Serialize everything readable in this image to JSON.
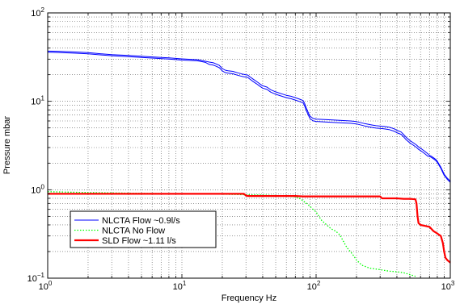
{
  "chart_data": {
    "type": "line",
    "xlabel": "Frequency Hz",
    "ylabel": "Pressure mbar",
    "x_scale": "log",
    "y_scale": "log",
    "xlim": [
      1,
      1000
    ],
    "ylim": [
      0.1,
      100
    ],
    "grid": true,
    "legend_position": "lower-left",
    "x_ticks": [
      {
        "value": 1,
        "base": "10",
        "exp": "0"
      },
      {
        "value": 10,
        "base": "10",
        "exp": "1"
      },
      {
        "value": 100,
        "base": "10",
        "exp": "2"
      },
      {
        "value": 1000,
        "base": "10",
        "exp": "3"
      }
    ],
    "y_ticks": [
      {
        "value": 0.1,
        "base": "10",
        "exp": "−1"
      },
      {
        "value": 1,
        "base": "10",
        "exp": "0"
      },
      {
        "value": 10,
        "base": "10",
        "exp": "1"
      },
      {
        "value": 100,
        "base": "10",
        "exp": "2"
      }
    ],
    "series": [
      {
        "name": "NLCTA Flow ~0.9l/s",
        "color": "#0000ff",
        "style": "solid",
        "x": [
          1,
          1.2,
          1.5,
          2,
          2.5,
          3,
          4,
          5,
          6,
          8,
          10,
          12,
          13,
          14,
          15,
          16,
          17,
          17.5,
          18,
          19,
          20,
          21,
          22,
          24,
          26,
          28,
          30,
          31,
          32,
          34,
          36,
          38,
          40,
          43,
          46,
          50,
          55,
          60,
          65,
          70,
          75,
          80,
          82,
          85,
          88,
          90,
          95,
          100,
          120,
          150,
          180,
          200,
          230,
          260,
          280,
          300,
          320,
          350,
          380,
          400,
          430,
          450,
          470,
          500,
          530,
          560,
          580,
          600,
          620,
          650,
          680,
          700,
          720,
          750,
          780,
          800,
          850,
          900,
          950,
          1000
        ],
        "y": [
          37,
          36.8,
          36.3,
          35.5,
          34.5,
          33.8,
          33,
          32.3,
          31.8,
          31,
          30.2,
          29.8,
          29.6,
          29,
          28.4,
          27.8,
          27.4,
          27,
          26.5,
          25.5,
          23.5,
          22.5,
          22.2,
          21.8,
          21,
          20.4,
          20,
          19.8,
          19,
          17.8,
          16.8,
          15.8,
          15,
          14.5,
          13.5,
          12.8,
          12.2,
          11.7,
          11.4,
          11,
          10.6,
          10.2,
          9.5,
          8.2,
          7.3,
          6.8,
          6.4,
          6.3,
          6.2,
          6.1,
          6,
          5.9,
          5.6,
          5.4,
          5.3,
          5.25,
          5.2,
          5.1,
          4.9,
          4.7,
          4.5,
          4.2,
          3.9,
          3.6,
          3.4,
          3.2,
          3.05,
          2.95,
          2.85,
          2.7,
          2.55,
          2.45,
          2.4,
          2.3,
          2.2,
          2.1,
          1.8,
          1.5,
          1.35,
          1.25
        ]
      },
      {
        "name": "NLCTA No Flow",
        "color": "#00ff00",
        "style": "dotted",
        "x": [
          1,
          2,
          5,
          10,
          20,
          40,
          60,
          70,
          75,
          80,
          85,
          90,
          95,
          100,
          105,
          110,
          120,
          130,
          140,
          150,
          160,
          170,
          180,
          190,
          200,
          220,
          250,
          300,
          350,
          400,
          450,
          500,
          550
        ],
        "y": [
          0.95,
          0.93,
          0.91,
          0.9,
          0.89,
          0.87,
          0.85,
          0.83,
          0.8,
          0.75,
          0.7,
          0.65,
          0.6,
          0.56,
          0.5,
          0.45,
          0.4,
          0.36,
          0.34,
          0.31,
          0.26,
          0.22,
          0.2,
          0.18,
          0.16,
          0.14,
          0.13,
          0.125,
          0.12,
          0.118,
          0.115,
          0.11,
          0.105
        ]
      },
      {
        "name": "SLD Flow ~1.11 l/s",
        "color": "#ff0000",
        "style": "solid-thick",
        "x": [
          1,
          5,
          10,
          20,
          29,
          30,
          31,
          35,
          40,
          50,
          60,
          70,
          80,
          90,
          100,
          150,
          200,
          250,
          300,
          310,
          350,
          400,
          450,
          500,
          550,
          560,
          570,
          580,
          600,
          650,
          700,
          750,
          800,
          850,
          880,
          900,
          920,
          950,
          1000
        ],
        "y": [
          0.9,
          0.9,
          0.9,
          0.9,
          0.9,
          0.86,
          0.85,
          0.85,
          0.85,
          0.85,
          0.85,
          0.85,
          0.84,
          0.84,
          0.84,
          0.84,
          0.84,
          0.84,
          0.84,
          0.8,
          0.8,
          0.8,
          0.79,
          0.79,
          0.78,
          0.7,
          0.5,
          0.42,
          0.4,
          0.39,
          0.38,
          0.34,
          0.32,
          0.3,
          0.25,
          0.2,
          0.17,
          0.16,
          0.15
        ]
      }
    ]
  }
}
